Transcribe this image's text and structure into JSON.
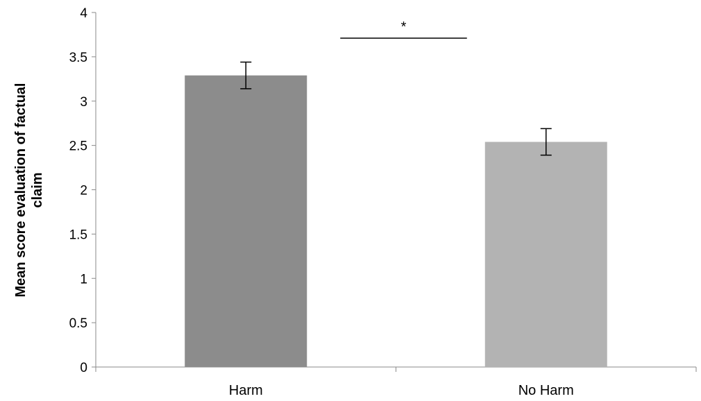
{
  "chart_data": {
    "type": "bar",
    "categories": [
      "Harm",
      "No Harm"
    ],
    "values": [
      3.29,
      2.54
    ],
    "error_bars": [
      {
        "lower": 3.14,
        "upper": 3.44
      },
      {
        "lower": 2.39,
        "upper": 2.69
      }
    ],
    "colors": [
      "#8c8c8c",
      "#b3b3b3"
    ],
    "title": "",
    "xlabel": "",
    "ylabel_lines": [
      "Mean score evaluation of factual",
      "claim"
    ],
    "ylim": [
      0,
      4
    ],
    "yticks": [
      0,
      0.5,
      1,
      1.5,
      2,
      2.5,
      3,
      3.5,
      4
    ],
    "ytick_labels": [
      "0",
      "0.5",
      "1",
      "1.5",
      "2",
      "2.5",
      "3",
      "3.5",
      "4"
    ],
    "grid": false,
    "legend": "none",
    "significance": {
      "between": [
        "Harm",
        "No Harm"
      ],
      "level": 3.71,
      "label": "*"
    }
  }
}
